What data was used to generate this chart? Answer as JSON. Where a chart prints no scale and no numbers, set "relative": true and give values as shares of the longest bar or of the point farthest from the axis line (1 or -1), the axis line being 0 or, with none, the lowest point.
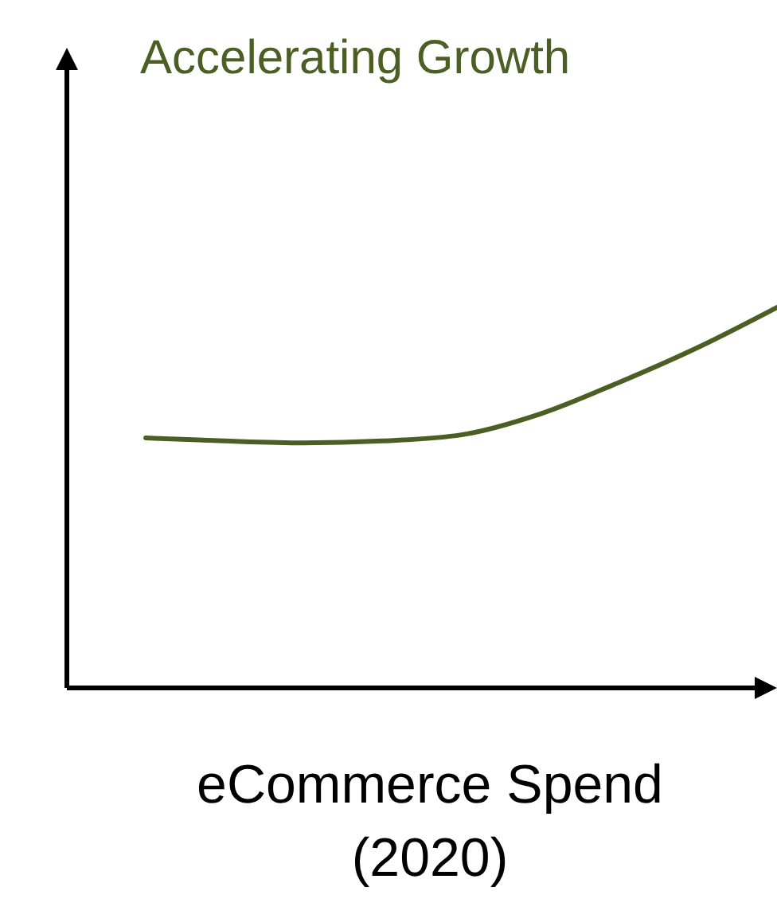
{
  "chart_data": {
    "type": "line",
    "title": "Accelerating Growth",
    "xlabel": "eCommerce Spend (2020)",
    "relative": true,
    "categories": [
      null,
      null,
      null,
      null,
      null,
      null,
      null,
      null,
      null
    ],
    "series": [
      {
        "color": "#4b5e24",
        "values": [
          0.657,
          0.649,
          0.644,
          0.649,
          0.665,
          0.72,
          0.803,
          0.895,
          1.0
        ]
      }
    ]
  }
}
